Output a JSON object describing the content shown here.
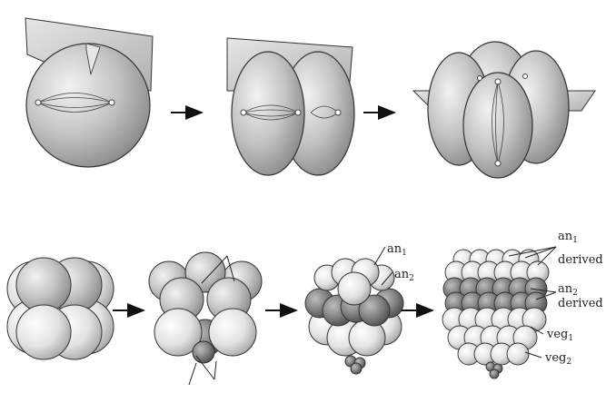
{
  "colors": {
    "cell_fill": "#b9b9b9",
    "cell_stroke": "#333333",
    "plane_fill": "#d4d4d4",
    "dark_cell": "#7a7a7a",
    "light_cell": "#dedede",
    "arrow": "#111111"
  },
  "labels": {
    "an1": {
      "base": "an",
      "sub": "1"
    },
    "an2": {
      "base": "an",
      "sub": "2"
    },
    "an1_derived": {
      "base": "an",
      "sub": "1",
      "suffix": "derived"
    },
    "an2_derived": {
      "base": "an",
      "sub": "2",
      "suffix": "derived"
    },
    "veg1": {
      "base": "veg",
      "sub": "1"
    },
    "veg2": {
      "base": "veg",
      "sub": "2"
    }
  }
}
